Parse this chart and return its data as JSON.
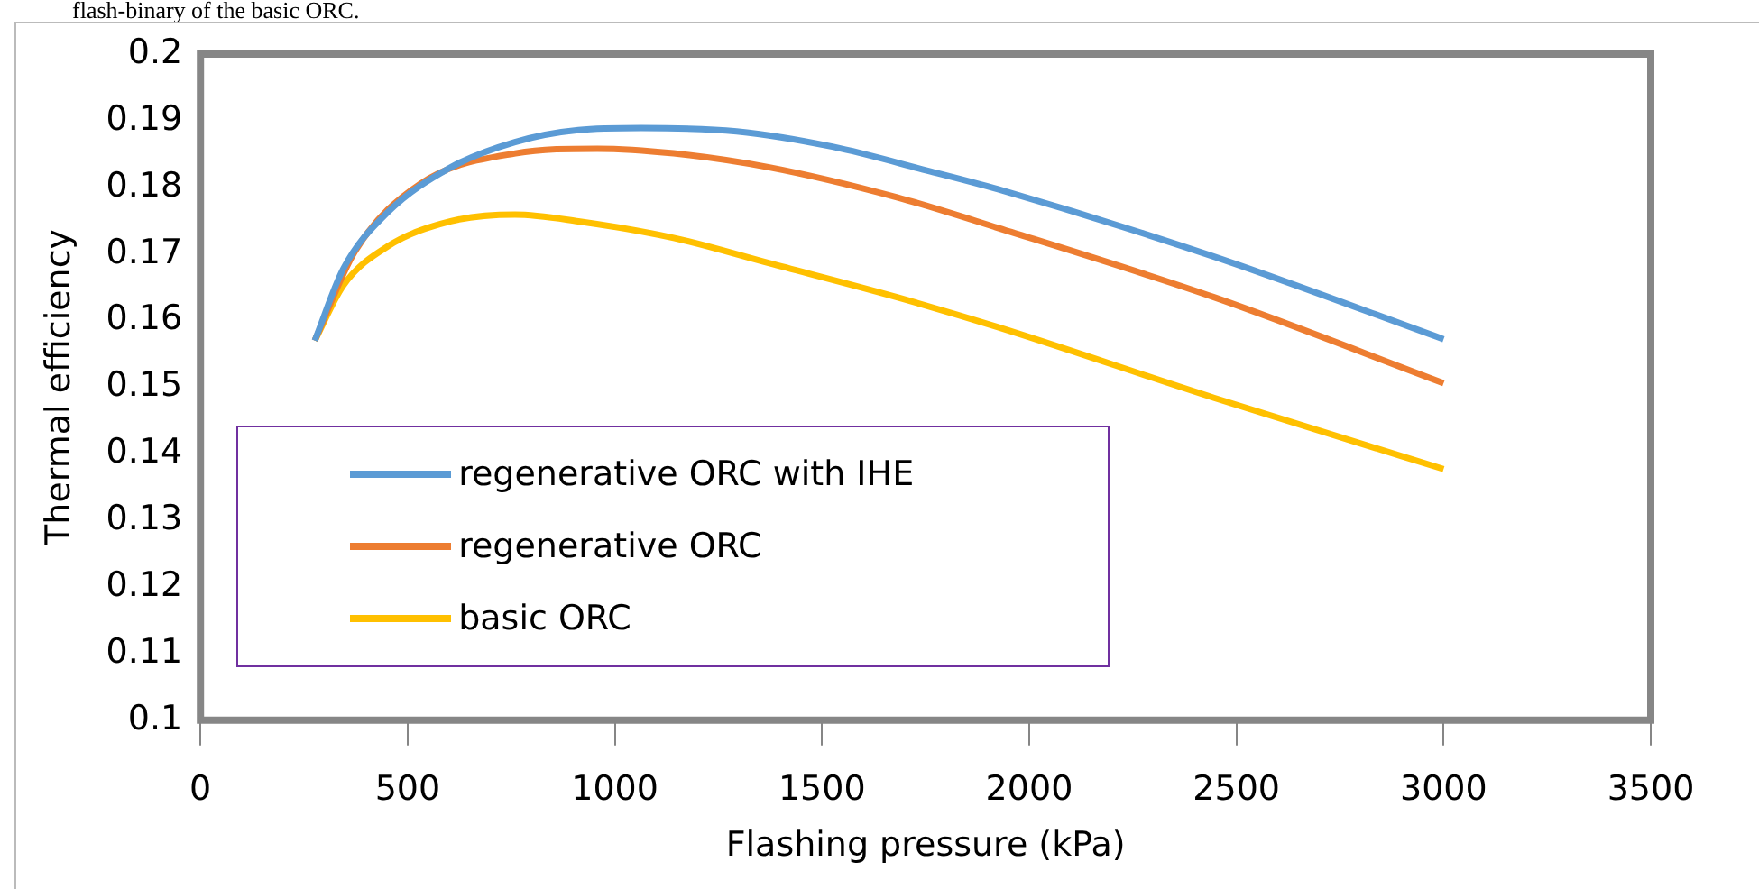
{
  "chart_data": {
    "type": "line",
    "xlabel": "Flashing pressure (kPa)",
    "ylabel": "Thermal efficiency",
    "annotations": [
      "flash-binary of the basic ORC."
    ],
    "xlim": [
      0,
      3500
    ],
    "xticks": [
      0,
      500,
      1000,
      1500,
      2000,
      2500,
      3000,
      3500
    ],
    "ylim": [
      0.1,
      0.2
    ],
    "yticks": [
      0.1,
      0.11,
      0.12,
      0.13,
      0.14,
      0.15,
      0.16,
      0.17,
      0.18,
      0.19,
      0.2
    ],
    "grid": false,
    "legend": "bottom left",
    "series": [
      {
        "name": "regenerative ORC with IHE",
        "color": "#5b9bd5",
        "x": [
          276,
          345,
          451,
          604,
          759,
          912,
          1064,
          1294,
          1525,
          1755,
          1925,
          2446,
          3000
        ],
        "values": [
          0.157,
          0.1678,
          0.1762,
          0.183,
          0.1868,
          0.1886,
          0.1889,
          0.1884,
          0.1861,
          0.1825,
          0.1797,
          0.1696,
          0.1572
        ]
      },
      {
        "name": "regenerative ORC",
        "color": "#ed7d31",
        "x": [
          276,
          373,
          530,
          760,
          958,
          1142,
          1373,
          1681,
          1925,
          2446,
          3000
        ],
        "values": [
          0.157,
          0.1704,
          0.1805,
          0.1851,
          0.1858,
          0.1851,
          0.183,
          0.1785,
          0.1739,
          0.1635,
          0.1506
        ]
      },
      {
        "name": "basic ORC",
        "color": "#ffc000",
        "x": [
          276,
          345,
          451,
          604,
          759,
          912,
          1142,
          1373,
          1681,
          1925,
          2446,
          3000
        ],
        "values": [
          0.157,
          0.1653,
          0.1711,
          0.1749,
          0.1759,
          0.1749,
          0.1724,
          0.1686,
          0.1635,
          0.159,
          0.1484,
          0.1377
        ]
      }
    ]
  }
}
